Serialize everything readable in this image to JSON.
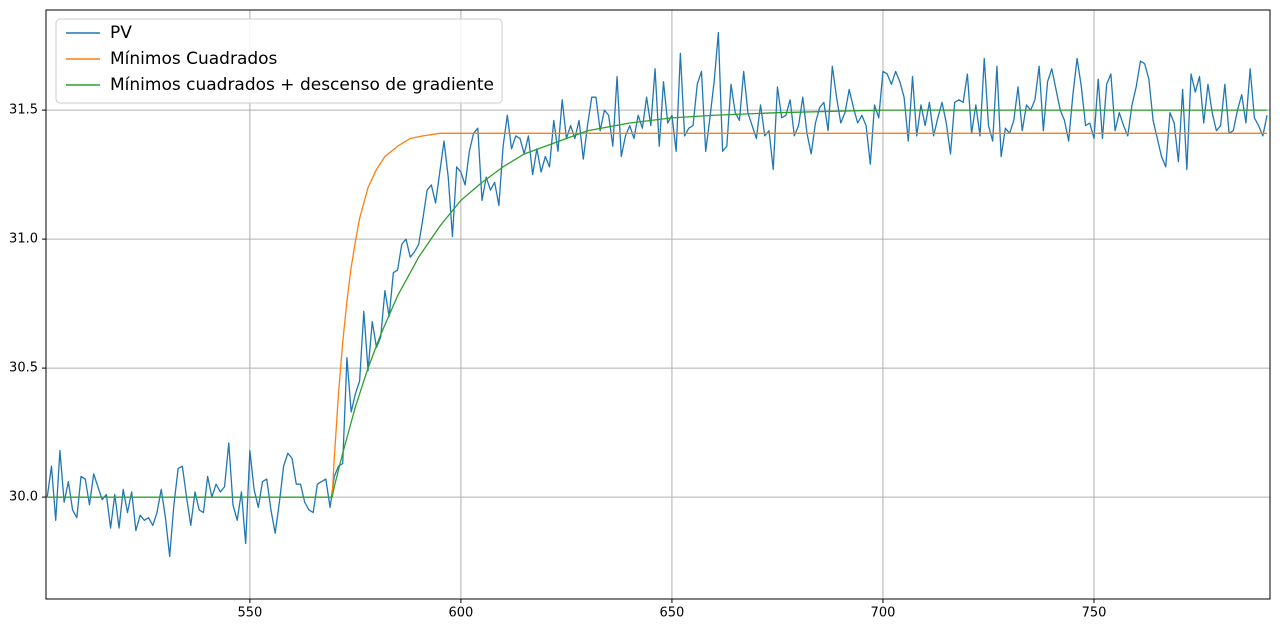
{
  "chart_data": {
    "type": "line",
    "xlim": [
      501.7,
      791.7
    ],
    "ylim": [
      29.605,
      31.888
    ],
    "xticks": [
      550,
      600,
      650,
      700,
      750
    ],
    "yticks": [
      {
        "value": 30.0,
        "label": "30.0"
      },
      {
        "value": 30.5,
        "label": "30.5"
      },
      {
        "value": 31.0,
        "label": "31.0"
      },
      {
        "value": 31.5,
        "label": "31.5"
      }
    ],
    "grid": true,
    "legend": "upper left",
    "series": [
      {
        "name": "PV",
        "color": "#1f77b4",
        "x": [
          502,
          503,
          504,
          505,
          506,
          507,
          508,
          509,
          510,
          511,
          512,
          513,
          514,
          515,
          516,
          517,
          518,
          519,
          520,
          521,
          522,
          523,
          524,
          525,
          526,
          527,
          528,
          529,
          530,
          531,
          532,
          533,
          534,
          535,
          536,
          537,
          538,
          539,
          540,
          541,
          542,
          543,
          544,
          545,
          546,
          547,
          548,
          549,
          550,
          551,
          552,
          553,
          554,
          555,
          556,
          557,
          558,
          559,
          560,
          561,
          562,
          563,
          564,
          565,
          566,
          567,
          568,
          569,
          570,
          571,
          572,
          573,
          574,
          575,
          576,
          577,
          578,
          579,
          580,
          581,
          582,
          583,
          584,
          585,
          586,
          587,
          588,
          589,
          590,
          591,
          592,
          593,
          594,
          595,
          596,
          597,
          598,
          599,
          600,
          601,
          602,
          603,
          604,
          605,
          606,
          607,
          608,
          609,
          610,
          611,
          612,
          613,
          614,
          615,
          616,
          617,
          618,
          619,
          620,
          621,
          622,
          623,
          624,
          625,
          626,
          627,
          628,
          629,
          630,
          631,
          632,
          633,
          634,
          635,
          636,
          637,
          638,
          639,
          640,
          641,
          642,
          643,
          644,
          645,
          646,
          647,
          648,
          649,
          650,
          651,
          652,
          653,
          654,
          655,
          656,
          657,
          658,
          659,
          660,
          661,
          662,
          663,
          664,
          665,
          666,
          667,
          668,
          669,
          670,
          671,
          672,
          673,
          674,
          675,
          676,
          677,
          678,
          679,
          680,
          681,
          682,
          683,
          684,
          685,
          686,
          687,
          688,
          689,
          690,
          691,
          692,
          693,
          694,
          695,
          696,
          697,
          698,
          699,
          700,
          701,
          702,
          703,
          704,
          705,
          706,
          707,
          708,
          709,
          710,
          711,
          712,
          713,
          714,
          715,
          716,
          717,
          718,
          719,
          720,
          721,
          722,
          723,
          724,
          725,
          726,
          727,
          728,
          729,
          730,
          731,
          732,
          733,
          734,
          735,
          736,
          737,
          738,
          739,
          740,
          741,
          742,
          743,
          744,
          745,
          746,
          747,
          748,
          749,
          750,
          751,
          752,
          753,
          754,
          755,
          756,
          757,
          758,
          759,
          760,
          761,
          762,
          763,
          764,
          765,
          766,
          767,
          768,
          769,
          770,
          771,
          772,
          773,
          774,
          775,
          776,
          777,
          778,
          779,
          780,
          781,
          782,
          783,
          784,
          785,
          786,
          787,
          788,
          789,
          790,
          791
        ],
        "values": [
          30.0,
          30.12,
          29.91,
          30.18,
          29.98,
          30.06,
          29.95,
          29.92,
          30.08,
          30.07,
          29.97,
          30.09,
          30.04,
          29.99,
          30.01,
          29.88,
          30.01,
          29.88,
          30.03,
          29.94,
          30.02,
          29.87,
          29.93,
          29.91,
          29.92,
          29.89,
          29.94,
          30.03,
          29.92,
          29.77,
          29.97,
          30.11,
          30.12,
          30.0,
          29.89,
          30.02,
          29.95,
          29.94,
          30.08,
          30.0,
          30.05,
          30.02,
          30.04,
          30.21,
          29.97,
          29.91,
          30.02,
          29.82,
          30.18,
          30.03,
          29.96,
          30.06,
          30.07,
          29.95,
          29.86,
          29.98,
          30.12,
          30.17,
          30.15,
          30.05,
          30.05,
          29.98,
          29.95,
          29.94,
          30.05,
          30.06,
          30.07,
          29.96,
          30.08,
          30.12,
          30.13,
          30.54,
          30.33,
          30.4,
          30.45,
          30.72,
          30.49,
          30.68,
          30.58,
          30.62,
          30.8,
          30.7,
          30.87,
          30.88,
          30.98,
          31.0,
          30.93,
          30.95,
          30.98,
          31.08,
          31.19,
          31.21,
          31.14,
          31.26,
          31.38,
          31.24,
          31.01,
          31.28,
          31.26,
          31.21,
          31.34,
          31.41,
          31.43,
          31.15,
          31.24,
          31.19,
          31.22,
          31.13,
          31.36,
          31.48,
          31.35,
          31.4,
          31.39,
          31.33,
          31.4,
          31.25,
          31.35,
          31.26,
          31.32,
          31.28,
          31.46,
          31.34,
          31.54,
          31.39,
          31.44,
          31.39,
          31.46,
          31.31,
          31.44,
          31.55,
          31.55,
          31.42,
          31.5,
          31.48,
          31.36,
          31.63,
          31.32,
          31.4,
          31.44,
          31.39,
          31.48,
          31.43,
          31.55,
          31.44,
          31.66,
          31.36,
          31.61,
          31.45,
          31.48,
          31.34,
          31.72,
          31.4,
          31.43,
          31.44,
          31.6,
          31.65,
          31.34,
          31.47,
          31.61,
          31.8,
          31.34,
          31.36,
          31.6,
          31.49,
          31.46,
          31.65,
          31.49,
          31.44,
          31.39,
          31.52,
          31.4,
          31.42,
          31.27,
          31.59,
          31.47,
          31.48,
          31.54,
          31.4,
          31.44,
          31.55,
          31.41,
          31.33,
          31.45,
          31.51,
          31.53,
          31.42,
          31.67,
          31.55,
          31.45,
          31.49,
          31.58,
          31.51,
          31.45,
          31.48,
          31.44,
          31.29,
          31.52,
          31.47,
          31.65,
          31.64,
          31.6,
          31.65,
          31.61,
          31.55,
          31.38,
          31.63,
          31.4,
          31.52,
          31.44,
          31.53,
          31.4,
          31.47,
          31.53,
          31.45,
          31.33,
          31.53,
          31.54,
          31.53,
          31.64,
          31.41,
          31.52,
          31.4,
          31.7,
          31.44,
          31.38,
          31.67,
          31.32,
          31.43,
          31.41,
          31.46,
          31.59,
          31.42,
          31.52,
          31.5,
          31.54,
          31.67,
          31.42,
          31.61,
          31.66,
          31.58,
          31.5,
          31.46,
          31.38,
          31.56,
          31.7,
          31.59,
          31.44,
          31.45,
          31.39,
          31.62,
          31.39,
          31.6,
          31.64,
          31.42,
          31.49,
          31.44,
          31.4,
          31.52,
          31.59,
          31.69,
          31.68,
          31.62,
          31.46,
          31.39,
          31.32,
          31.28,
          31.49,
          31.45,
          31.3,
          31.58,
          31.27,
          31.64,
          31.57,
          31.63,
          31.45,
          31.6,
          31.49,
          31.42,
          31.44,
          31.6,
          31.41,
          31.42,
          31.5,
          31.56,
          31.45,
          31.66,
          31.47,
          31.44,
          31.4,
          31.48
        ]
      },
      {
        "name": "Mínimos Cuadrados",
        "color": "#ff7f0e",
        "x": [
          502,
          569.5,
          570,
          571,
          572,
          573,
          574,
          575,
          576,
          578,
          580,
          582,
          585,
          588,
          591,
          595,
          791
        ],
        "values": [
          30.0,
          30.0,
          30.15,
          30.4,
          30.6,
          30.76,
          30.89,
          30.99,
          31.08,
          31.2,
          31.27,
          31.32,
          31.36,
          31.39,
          31.4,
          31.41,
          31.41
        ]
      },
      {
        "name": "Mínimos cuadrados + descenso de gradiente",
        "color": "#2ca02c",
        "x": [
          502,
          569.5,
          570,
          572,
          575,
          578,
          581,
          585,
          590,
          595,
          600,
          605,
          610,
          615,
          620,
          630,
          640,
          650,
          660,
          675,
          700,
          791
        ],
        "values": [
          30.0,
          30.0,
          30.04,
          30.17,
          30.35,
          30.5,
          30.63,
          30.78,
          30.93,
          31.05,
          31.15,
          31.22,
          31.28,
          31.33,
          31.36,
          31.42,
          31.45,
          31.47,
          31.48,
          31.49,
          31.5,
          31.5
        ]
      }
    ]
  }
}
